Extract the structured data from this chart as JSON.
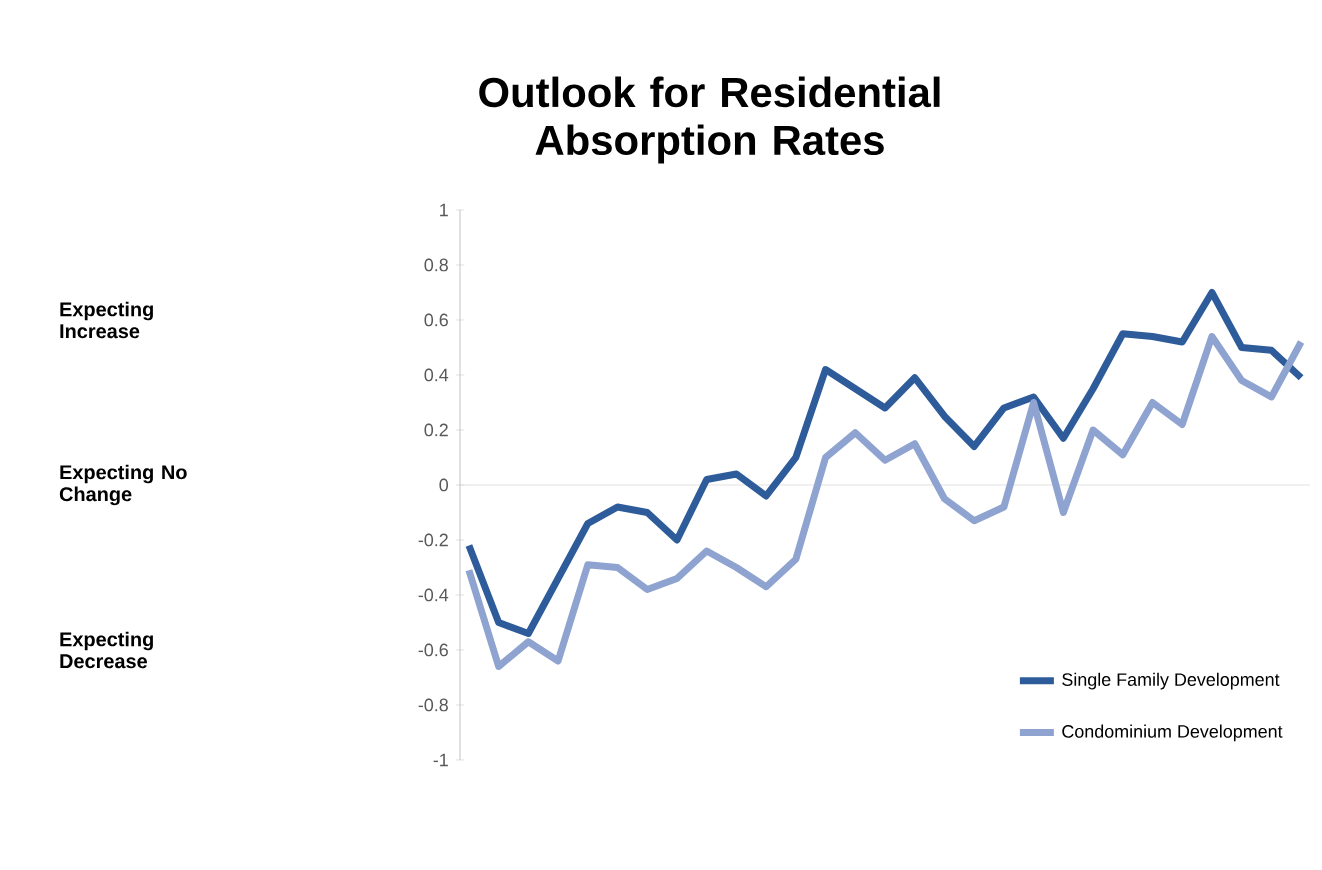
{
  "chart_data": {
    "type": "line",
    "title": "Outlook for Residential Absorption Rates",
    "categories": [
      null,
      null,
      null,
      null,
      null,
      null,
      null,
      null,
      null,
      null,
      null,
      null,
      null,
      null,
      null,
      null,
      null,
      null,
      null,
      null,
      null,
      null,
      null,
      null,
      null,
      null,
      null,
      null,
      null
    ],
    "series": [
      {
        "name": "Single Family Development",
        "color": "#2e5c9a",
        "values": [
          -0.22,
          -0.5,
          -0.54,
          -0.34,
          -0.14,
          -0.08,
          -0.1,
          -0.2,
          0.02,
          0.04,
          -0.04,
          0.1,
          0.42,
          0.35,
          0.28,
          0.39,
          0.25,
          0.14,
          0.28,
          0.32,
          0.17,
          0.35,
          0.55,
          0.54,
          0.52,
          0.7,
          0.5,
          0.49,
          0.39
        ]
      },
      {
        "name": "Condominium Development",
        "color": "#8fa3d1",
        "values": [
          -0.31,
          -0.66,
          -0.57,
          -0.64,
          -0.29,
          -0.3,
          -0.38,
          -0.34,
          -0.24,
          -0.3,
          -0.37,
          -0.27,
          0.1,
          0.19,
          0.09,
          0.15,
          -0.05,
          -0.13,
          -0.08,
          0.3,
          -0.1,
          0.2,
          0.11,
          0.3,
          0.22,
          0.54,
          0.38,
          0.32,
          0.52
        ]
      }
    ],
    "ylim": [
      -1,
      1
    ],
    "yticks": [
      -1,
      -0.8,
      -0.6,
      -0.4,
      -0.2,
      0,
      0.2,
      0.4,
      0.6,
      0.8,
      1
    ],
    "annotations": [
      "Expecting Increase",
      "Expecting No Change",
      "Expecting Decrease"
    ],
    "legend": "bottom right",
    "marker": "none",
    "line_style": "solid"
  }
}
